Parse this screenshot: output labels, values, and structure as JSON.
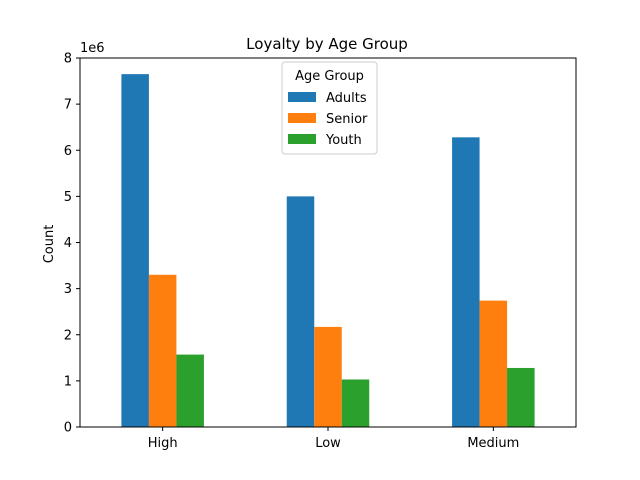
{
  "chart_data": {
    "type": "bar",
    "title": "Loyalty by Age Group",
    "xlabel": "",
    "ylabel": "Count",
    "y_scale_label": "1e6",
    "ylim": [
      0,
      8000000
    ],
    "yticks": [
      0,
      1000000,
      2000000,
      3000000,
      4000000,
      5000000,
      6000000,
      7000000,
      8000000
    ],
    "ytick_labels": [
      "0",
      "1",
      "2",
      "3",
      "4",
      "5",
      "6",
      "7",
      "8"
    ],
    "categories": [
      "High",
      "Low",
      "Medium"
    ],
    "series": [
      {
        "name": "Adults",
        "color": "#1f77b4",
        "values": [
          7650000,
          5000000,
          6280000
        ]
      },
      {
        "name": "Senior",
        "color": "#ff7f0e",
        "values": [
          3300000,
          2170000,
          2740000
        ]
      },
      {
        "name": "Youth",
        "color": "#2ca02c",
        "values": [
          1570000,
          1030000,
          1280000
        ]
      }
    ],
    "legend": {
      "title": "Age Group",
      "placement": "upper-center"
    },
    "grid": false
  }
}
